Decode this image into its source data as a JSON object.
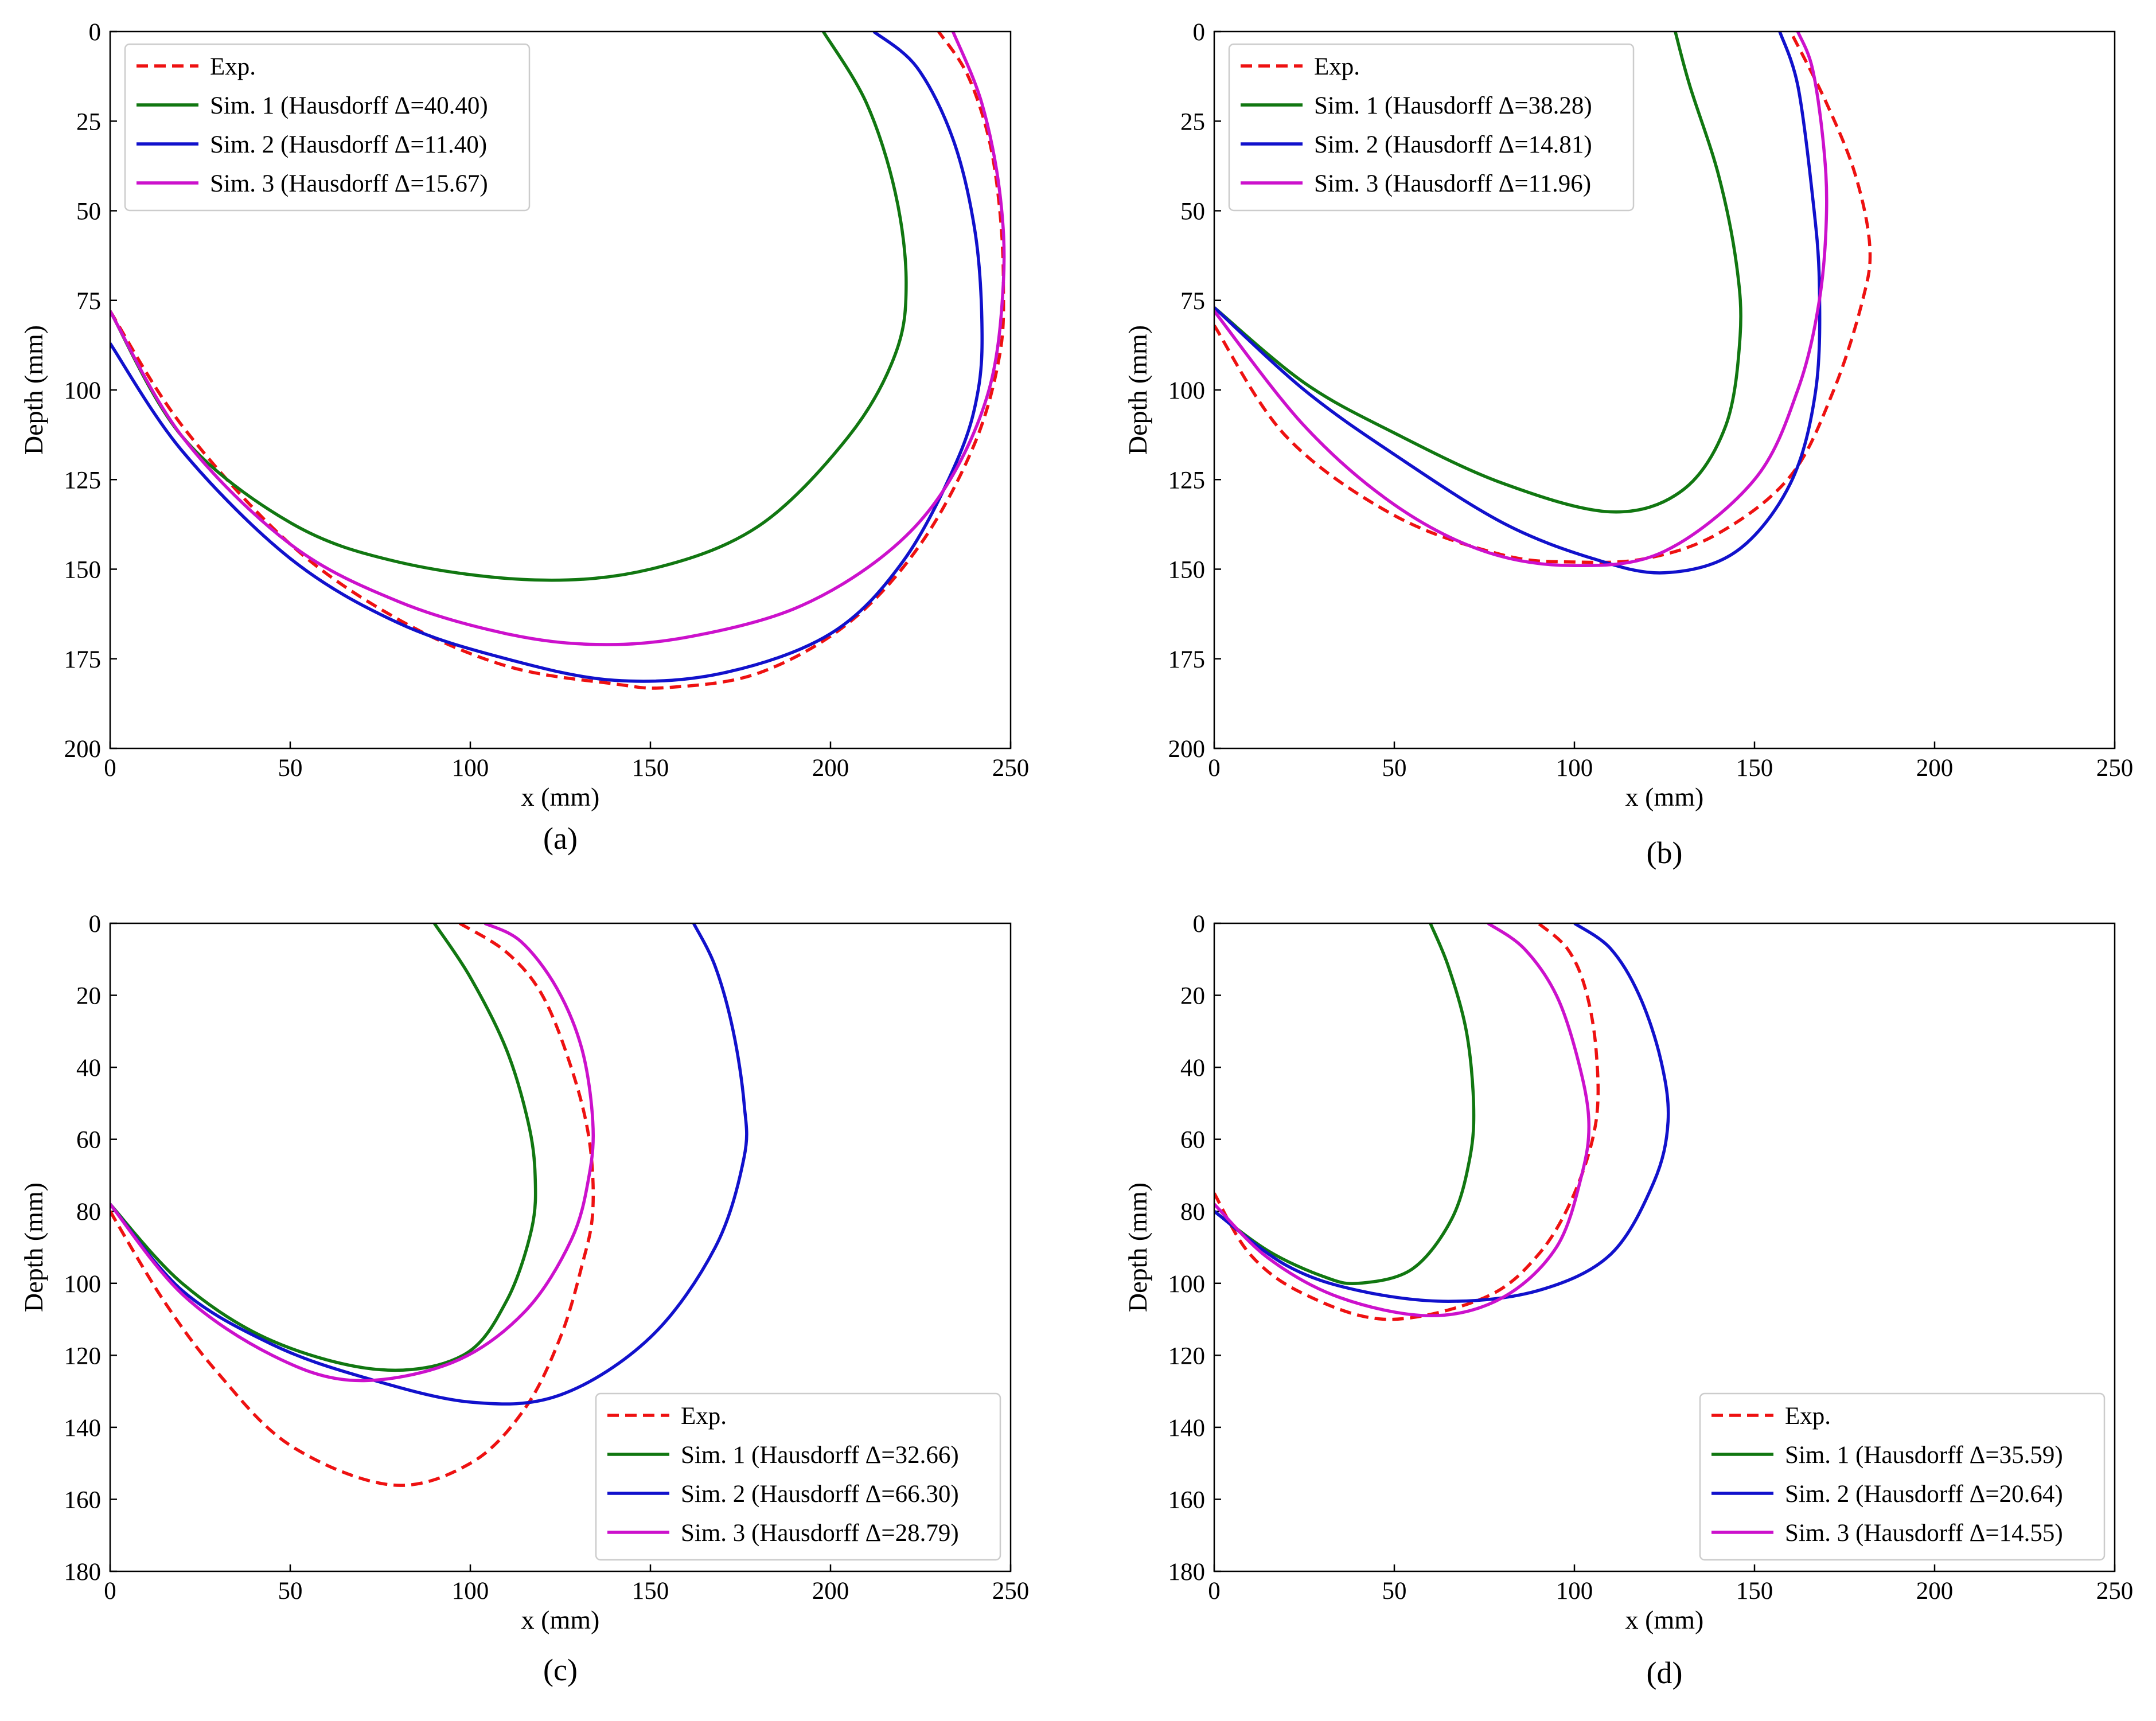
{
  "chart_data": [
    {
      "id": "a",
      "type": "line",
      "panel_label": "(a)",
      "xlabel": "x (mm)",
      "ylabel": "Depth (mm)",
      "xlim": [
        0,
        250
      ],
      "ylim": [
        200,
        0
      ],
      "xticks": [
        0,
        50,
        100,
        150,
        200,
        250
      ],
      "yticks": [
        0,
        25,
        50,
        75,
        100,
        125,
        150,
        175,
        200
      ],
      "legend_position": "upper-left",
      "series": [
        {
          "name": "Exp.",
          "color": "#ee1111",
          "dashed": true,
          "x": [
            0,
            20,
            50,
            80,
            110,
            140,
            155,
            180,
            205,
            225,
            240,
            247,
            248,
            247,
            244,
            238,
            230
          ],
          "y": [
            78,
            110,
            143,
            164,
            177,
            182,
            183,
            179,
            165,
            143,
            115,
            90,
            70,
            50,
            30,
            12,
            0
          ]
        },
        {
          "name": "Sim. 1 (Hausdorff Δ=40.40)",
          "color": "#117711",
          "dashed": false,
          "x": [
            0,
            20,
            50,
            80,
            118,
            150,
            180,
            205,
            218,
            221,
            218,
            210,
            198
          ],
          "y": [
            78,
            113,
            137,
            148,
            153,
            150,
            138,
            113,
            90,
            70,
            45,
            20,
            0
          ]
        },
        {
          "name": "Sim. 2 (Hausdorff Δ=11.40)",
          "color": "#1111cc",
          "dashed": false,
          "x": [
            0,
            20,
            50,
            80,
            110,
            140,
            170,
            200,
            220,
            235,
            241,
            242,
            240,
            234,
            224,
            212
          ],
          "y": [
            87,
            117,
            147,
            165,
            175,
            181,
            179,
            168,
            148,
            120,
            100,
            80,
            55,
            30,
            10,
            0
          ]
        },
        {
          "name": "Sim. 3 (Hausdorff Δ=15.67)",
          "color": "#cc11cc",
          "dashed": false,
          "x": [
            0,
            20,
            50,
            80,
            110,
            135,
            160,
            190,
            215,
            232,
            244,
            248,
            247,
            242,
            234
          ],
          "y": [
            78,
            113,
            143,
            159,
            168,
            171,
            169,
            161,
            146,
            127,
            100,
            70,
            45,
            20,
            0
          ]
        }
      ]
    },
    {
      "id": "b",
      "type": "line",
      "panel_label": "(b)",
      "xlabel": "x (mm)",
      "ylabel": "Depth (mm)",
      "xlim": [
        0,
        250
      ],
      "ylim": [
        200,
        0
      ],
      "xticks": [
        0,
        50,
        100,
        150,
        200,
        250
      ],
      "yticks": [
        0,
        25,
        50,
        75,
        100,
        125,
        150,
        175,
        200
      ],
      "legend_position": "upper-left",
      "series": [
        {
          "name": "Exp.",
          "color": "#ee1111",
          "dashed": true,
          "x": [
            0,
            20,
            50,
            80,
            100,
            120,
            140,
            160,
            172,
            180,
            182,
            178,
            170,
            160
          ],
          "y": [
            82,
            113,
            135,
            146,
            148,
            147,
            140,
            124,
            100,
            75,
            60,
            40,
            20,
            0
          ]
        },
        {
          "name": "Sim. 1 (Hausdorff Δ=38.28)",
          "color": "#117711",
          "dashed": false,
          "x": [
            0,
            25,
            50,
            80,
            110,
            130,
            142,
            146,
            145,
            140,
            132,
            128
          ],
          "y": [
            77,
            98,
            112,
            126,
            134,
            128,
            110,
            85,
            65,
            40,
            15,
            0
          ]
        },
        {
          "name": "Sim. 2 (Hausdorff Δ=14.81)",
          "color": "#1111cc",
          "dashed": false,
          "x": [
            0,
            25,
            50,
            80,
            105,
            125,
            145,
            160,
            167,
            168,
            166,
            162,
            157
          ],
          "y": [
            77,
            100,
            118,
            137,
            147,
            151,
            145,
            126,
            100,
            70,
            45,
            15,
            0
          ]
        },
        {
          "name": "Sim. 3 (Hausdorff Δ=11.96)",
          "color": "#cc11cc",
          "dashed": false,
          "x": [
            0,
            25,
            50,
            75,
            100,
            125,
            150,
            162,
            168,
            170,
            169,
            166,
            162
          ],
          "y": [
            78,
            110,
            132,
            145,
            149,
            145,
            125,
            100,
            75,
            50,
            30,
            10,
            0
          ]
        }
      ]
    },
    {
      "id": "c",
      "type": "line",
      "panel_label": "(c)",
      "xlabel": "x (mm)",
      "ylabel": "Depth (mm)",
      "xlim": [
        0,
        250
      ],
      "ylim": [
        180,
        0
      ],
      "xticks": [
        0,
        50,
        100,
        150,
        200,
        250
      ],
      "yticks": [
        0,
        20,
        40,
        60,
        80,
        100,
        120,
        140,
        160,
        180
      ],
      "legend_position": "lower-right",
      "series": [
        {
          "name": "Exp.",
          "color": "#ee1111",
          "dashed": true,
          "x": [
            0,
            15,
            30,
            50,
            78,
            100,
            115,
            125,
            131,
            134,
            133,
            128,
            120,
            110,
            97
          ],
          "y": [
            80,
            105,
            125,
            145,
            156,
            150,
            135,
            115,
            95,
            80,
            60,
            40,
            20,
            8,
            0
          ]
        },
        {
          "name": "Sim. 1 (Hausdorff Δ=32.66)",
          "color": "#117711",
          "dashed": false,
          "x": [
            0,
            20,
            45,
            75,
            98,
            110,
            117,
            118,
            116,
            110,
            100,
            90
          ],
          "y": [
            78,
            100,
            116,
            124,
            120,
            105,
            85,
            70,
            55,
            35,
            15,
            0
          ]
        },
        {
          "name": "Sim. 2 (Hausdorff Δ=66.30)",
          "color": "#1111cc",
          "dashed": false,
          "x": [
            0,
            20,
            45,
            70,
            100,
            125,
            150,
            168,
            176,
            176,
            173,
            168,
            162
          ],
          "y": [
            78,
            102,
            117,
            126,
            133,
            131,
            115,
            90,
            65,
            50,
            30,
            12,
            0
          ]
        },
        {
          "name": "Sim. 3 (Hausdorff Δ=28.79)",
          "color": "#cc11cc",
          "dashed": false,
          "x": [
            0,
            20,
            45,
            68,
            95,
            115,
            128,
            133,
            134,
            131,
            124,
            114,
            104
          ],
          "y": [
            78,
            103,
            120,
            127,
            122,
            108,
            88,
            70,
            55,
            35,
            18,
            5,
            0
          ]
        }
      ]
    },
    {
      "id": "d",
      "type": "line",
      "panel_label": "(d)",
      "xlabel": "x (mm)",
      "ylabel": "Depth (mm)",
      "xlim": [
        0,
        250
      ],
      "ylim": [
        180,
        0
      ],
      "xticks": [
        0,
        50,
        100,
        150,
        200,
        250
      ],
      "yticks": [
        0,
        20,
        40,
        60,
        80,
        100,
        120,
        140,
        160,
        180
      ],
      "legend_position": "lower-right",
      "series": [
        {
          "name": "Exp.",
          "color": "#ee1111",
          "dashed": true,
          "x": [
            0,
            10,
            25,
            48,
            75,
            90,
            100,
            106,
            106,
            103,
            98,
            90
          ],
          "y": [
            75,
            92,
            103,
            110,
            104,
            92,
            75,
            55,
            35,
            18,
            7,
            0
          ]
        },
        {
          "name": "Sim. 1 (Hausdorff Δ=35.59)",
          "color": "#117711",
          "dashed": false,
          "x": [
            0,
            15,
            30,
            40,
            55,
            66,
            71,
            72,
            70,
            65,
            60
          ],
          "y": [
            80,
            91,
            98,
            100,
            96,
            82,
            65,
            50,
            30,
            12,
            0
          ]
        },
        {
          "name": "Sim. 2 (Hausdorff Δ=20.64)",
          "color": "#1111cc",
          "dashed": false,
          "x": [
            0,
            20,
            40,
            65,
            90,
            110,
            122,
            126,
            124,
            118,
            110,
            100
          ],
          "y": [
            80,
            95,
            102,
            105,
            102,
            92,
            72,
            55,
            38,
            20,
            7,
            0
          ]
        },
        {
          "name": "Sim. 3 (Hausdorff Δ=14.55)",
          "color": "#cc11cc",
          "dashed": false,
          "x": [
            0,
            15,
            35,
            60,
            80,
            95,
            102,
            104,
            101,
            95,
            86,
            76
          ],
          "y": [
            78,
            93,
            104,
            109,
            104,
            90,
            70,
            55,
            38,
            20,
            7,
            0
          ]
        }
      ]
    }
  ]
}
